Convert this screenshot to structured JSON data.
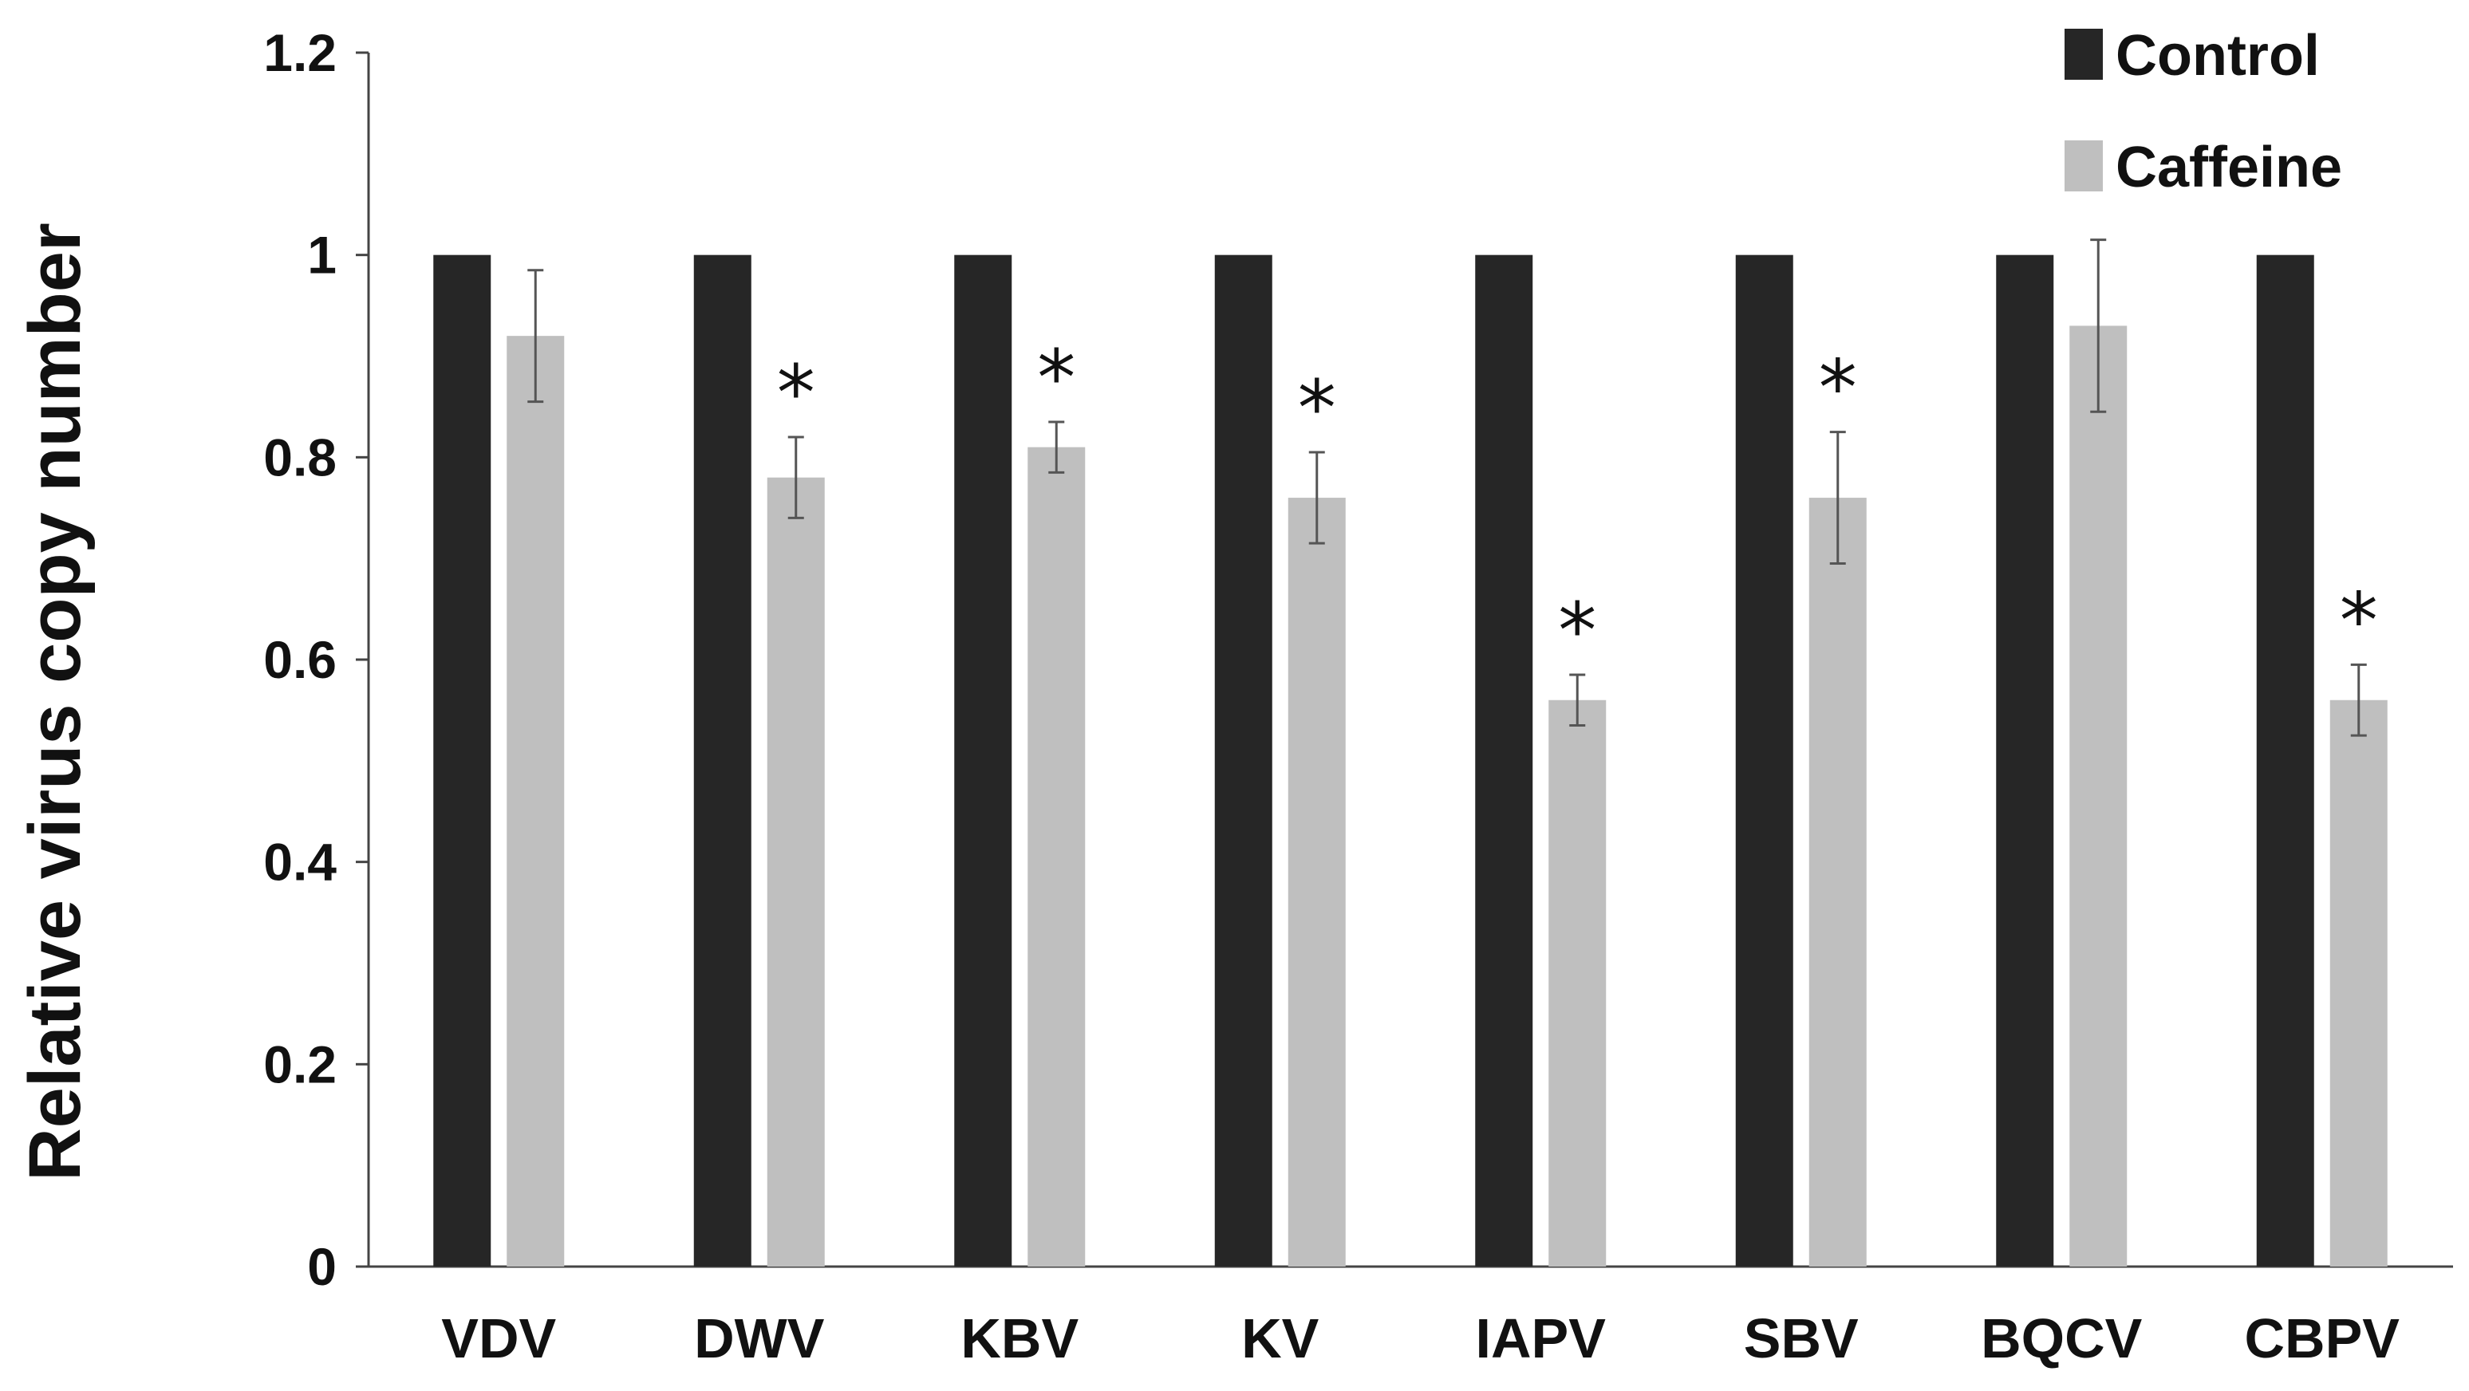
{
  "chart_data": {
    "type": "bar",
    "title": "",
    "xlabel": "",
    "ylabel": "Relative virus copy number",
    "ylim": [
      0,
      1.2
    ],
    "yticks": [
      {
        "value": 0,
        "label": "0"
      },
      {
        "value": 0.2,
        "label": "0.2"
      },
      {
        "value": 0.4,
        "label": "0.4"
      },
      {
        "value": 0.6,
        "label": "0.6"
      },
      {
        "value": 0.8,
        "label": "0.8"
      },
      {
        "value": 1,
        "label": "1"
      },
      {
        "value": 1.2,
        "label": "1.2"
      }
    ],
    "categories": [
      "VDV",
      "DWV",
      "KBV",
      "KV",
      "IAPV",
      "SBV",
      "BQCV",
      "CBPV"
    ],
    "series": [
      {
        "name": "Control",
        "color": "#262626",
        "values": [
          1,
          1,
          1,
          1,
          1,
          1,
          1,
          1
        ]
      },
      {
        "name": "Caffeine",
        "color": "#bfbfbf",
        "values": [
          0.92,
          0.78,
          0.81,
          0.76,
          0.56,
          0.76,
          0.93,
          0.56
        ],
        "errors": [
          0.065,
          0.04,
          0.025,
          0.045,
          0.025,
          0.065,
          0.085,
          0.035
        ]
      }
    ],
    "significance": [
      {
        "category": "DWV",
        "series": "Caffeine",
        "label": "*"
      },
      {
        "category": "KBV",
        "series": "Caffeine",
        "label": "*"
      },
      {
        "category": "KV",
        "series": "Caffeine",
        "label": "*"
      },
      {
        "category": "IAPV",
        "series": "Caffeine",
        "label": "*"
      },
      {
        "category": "SBV",
        "series": "Caffeine",
        "label": "*"
      },
      {
        "category": "CBPV",
        "series": "Caffeine",
        "label": "*"
      }
    ],
    "legend": {
      "position": "top-right"
    },
    "grid": false
  }
}
